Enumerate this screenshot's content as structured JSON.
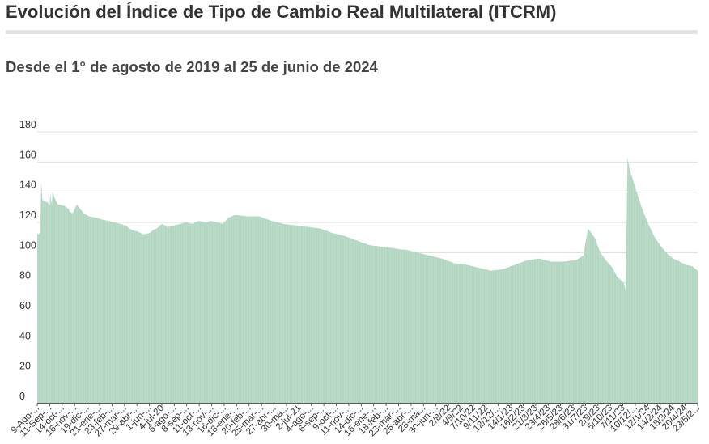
{
  "header": {
    "title": "Evolución del Índice de Tipo de Cambio Real Multilateral (ITCRM)",
    "subtitle": "Desde el 1° de agosto de 2019 al 25 de junio de 2024"
  },
  "colors": {
    "fill": "#b3d7c2",
    "grid": "#dddddd",
    "axis": "#333333",
    "rule": "#e4e4e4"
  },
  "chart_data": {
    "type": "area",
    "title": "Evolución del Índice de Tipo de Cambio Real Multilateral (ITCRM)",
    "subtitle": "Desde el 1° de agosto de 2019 al 25 de junio de 2024",
    "xlabel": "",
    "ylabel": "",
    "ylim": [
      0,
      180
    ],
    "yticks": [
      0,
      20,
      40,
      60,
      80,
      100,
      120,
      140,
      160,
      180
    ],
    "grid": true,
    "legend": "none",
    "x_tick_labels": [
      "9-Ago-...",
      "11-Sep-...",
      "14-oct-...",
      "16-nov-...",
      "19-dic-...",
      "21-ene-...",
      "23-feb-...",
      "27-mar-...",
      "29-abr-...",
      "1-jun-...",
      "4-jul-20",
      "6-ago-...",
      "8-sep-...",
      "11-oct-...",
      "13-nov-...",
      "16-dic-...",
      "18-ene-...",
      "20-feb-...",
      "25-mar-...",
      "27-abr-...",
      "30-ma...",
      "2-jul-21",
      "4-ago-...",
      "6-sep-...",
      "9-oct-...",
      "11-nov-...",
      "14-dic-...",
      "16-ene-...",
      "18-feb-...",
      "23-mar-...",
      "25-abr-...",
      "28-ma...",
      "30-jun-...",
      "2/8/22",
      "4/9/22",
      "7/10/22",
      "9/11/22",
      "12/12/...",
      "14/1/23",
      "16/2/23",
      "21/3/23",
      "23/4/23",
      "26/5/23",
      "28/6/23",
      "31/7/23",
      "2/9/23",
      "5/10/23",
      "7/11/23",
      "10/12/...",
      "12/1/24",
      "14/2/24",
      "18/3/24",
      "20/4/24",
      "23/5/2..."
    ],
    "x": [
      "2019-08-01",
      "2019-08-09",
      "2019-08-12",
      "2019-08-15",
      "2019-08-30",
      "2019-09-04",
      "2019-09-05",
      "2019-09-10",
      "2019-09-11",
      "2019-09-25",
      "2019-10-14",
      "2019-10-25",
      "2019-10-28",
      "2019-11-05",
      "2019-11-16",
      "2019-11-19",
      "2019-12-05",
      "2019-12-19",
      "2020-01-10",
      "2020-01-21",
      "2020-02-10",
      "2020-02-23",
      "2020-03-13",
      "2020-03-27",
      "2020-04-13",
      "2020-04-29",
      "2020-05-15",
      "2020-06-01",
      "2020-06-10",
      "2020-06-20",
      "2020-07-04",
      "2020-07-20",
      "2020-08-06",
      "2020-09-08",
      "2020-09-25",
      "2020-10-11",
      "2020-10-31",
      "2020-11-13",
      "2020-11-30",
      "2020-12-16",
      "2020-12-31",
      "2021-01-18",
      "2021-02-20",
      "2021-03-25",
      "2021-04-27",
      "2021-05-30",
      "2021-07-02",
      "2021-08-04",
      "2021-09-06",
      "2021-10-09",
      "2021-11-11",
      "2021-12-14",
      "2022-01-16",
      "2022-02-18",
      "2022-03-23",
      "2022-04-15",
      "2022-04-25",
      "2022-05-28",
      "2022-06-30",
      "2022-08-02",
      "2022-09-04",
      "2022-10-07",
      "2022-11-09",
      "2022-12-12",
      "2023-01-14",
      "2023-02-16",
      "2023-03-21",
      "2023-04-23",
      "2023-05-26",
      "2023-06-28",
      "2023-07-31",
      "2023-08-13",
      "2023-08-14",
      "2023-08-20",
      "2023-09-02",
      "2023-09-20",
      "2023-10-05",
      "2023-10-20",
      "2023-11-07",
      "2023-11-20",
      "2023-12-08",
      "2023-12-12",
      "2023-12-13",
      "2023-12-18",
      "2023-12-24",
      "2024-01-12",
      "2024-01-28",
      "2024-02-14",
      "2024-03-01",
      "2024-03-18",
      "2024-04-05",
      "2024-04-20",
      "2024-05-08",
      "2024-05-23",
      "2024-06-10",
      "2024-06-25"
    ],
    "series": [
      {
        "values": [
          112,
          113,
          147,
          135,
          133,
          131,
          139,
          131,
          140,
          132,
          131,
          129,
          127,
          126,
          132,
          131,
          126,
          124,
          123,
          122,
          121,
          120,
          119,
          118,
          115,
          114,
          112,
          113,
          115,
          116,
          119,
          117,
          118,
          120,
          119,
          121,
          120,
          121,
          120,
          119,
          123,
          125,
          124,
          124,
          121,
          119,
          118,
          117,
          116,
          113,
          111,
          108,
          105,
          104,
          103,
          102,
          102,
          100,
          98,
          96,
          93,
          92,
          90,
          88,
          89,
          92,
          95,
          96,
          94,
          94,
          95,
          97,
          97,
          98,
          116,
          110,
          100,
          95,
          90,
          84,
          80,
          76,
          75,
          163,
          155,
          140,
          128,
          118,
          110,
          104,
          99,
          96,
          94,
          92,
          91,
          88
        ]
      }
    ]
  }
}
